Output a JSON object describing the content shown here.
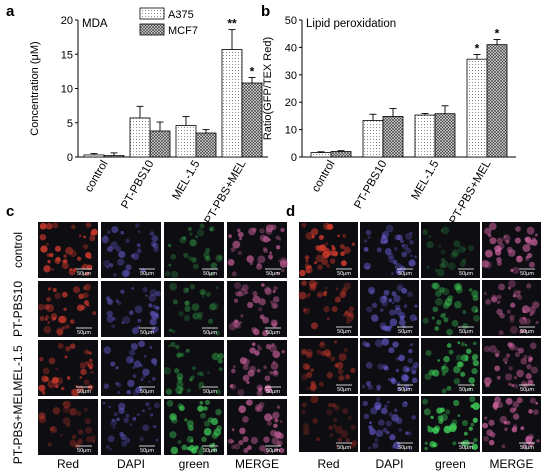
{
  "colors": {
    "bar_open": "#f7f7f7",
    "bar_hatched": "#cfcfcf",
    "micro_bg": "#0d0d12",
    "red_stain": "#d33a2c",
    "dapi_stain": "#6a5fd6",
    "green_stain": "#3fcf58",
    "merge_stain": "#c8609a"
  },
  "panel_a": {
    "panel_label": "a",
    "title": "MDA",
    "chart_data": {
      "type": "bar",
      "categories": [
        "control",
        "PT-PBS10",
        "MEL-1.5",
        "PT-PBS+MEL"
      ],
      "series": [
        {
          "name": "A375",
          "values": [
            0.3,
            5.7,
            4.6,
            15.7
          ],
          "errors": [
            0.2,
            1.7,
            1.3,
            2.9
          ]
        },
        {
          "name": "MCF7",
          "values": [
            0.2,
            3.8,
            3.5,
            10.8
          ],
          "errors": [
            0.4,
            1.3,
            0.5,
            0.8
          ]
        }
      ],
      "ylabel": "Concentration (μM)",
      "ylim": [
        0,
        20
      ],
      "yticks": [
        0,
        5,
        10,
        15,
        20
      ],
      "significance": [
        {
          "category": "PT-PBS+MEL",
          "series": "A375",
          "mark": "**"
        },
        {
          "category": "PT-PBS+MEL",
          "series": "MCF7",
          "mark": "*"
        }
      ]
    }
  },
  "panel_b": {
    "panel_label": "b",
    "title": "Lipid peroxidation",
    "chart_data": {
      "type": "bar",
      "categories": [
        "control",
        "PT-PBS10",
        "MEL-1.5",
        "PT-PBS+MEL"
      ],
      "series": [
        {
          "name": "A375",
          "values": [
            1.6,
            13.3,
            15.3,
            35.7
          ],
          "errors": [
            0.3,
            2.3,
            0.6,
            1.7
          ]
        },
        {
          "name": "MCF7",
          "values": [
            2.0,
            14.8,
            15.8,
            41.0
          ],
          "errors": [
            0.3,
            2.9,
            2.9,
            1.9
          ]
        }
      ],
      "ylabel": "Ratio(GFP/TEX Red)",
      "ylim": [
        0,
        50
      ],
      "yticks": [
        0,
        10,
        20,
        30,
        40,
        50
      ],
      "significance": [
        {
          "category": "PT-PBS+MEL",
          "series": "A375",
          "mark": "*"
        },
        {
          "category": "PT-PBS+MEL",
          "series": "MCF7",
          "mark": "*"
        }
      ]
    }
  },
  "panel_c": {
    "panel_label": "c",
    "rows": [
      "control",
      "PT-PBS10",
      "MEL-1.5",
      "PT-PBS+MEL"
    ],
    "columns": [
      "Red",
      "DAPI",
      "green",
      "MERGE"
    ],
    "scale_bar": "50μm",
    "intensity": [
      [
        0.9,
        0.55,
        0.35,
        0.8
      ],
      [
        0.75,
        0.6,
        0.3,
        0.7
      ],
      [
        0.8,
        0.55,
        0.45,
        0.75
      ],
      [
        0.35,
        0.5,
        0.85,
        0.8
      ]
    ]
  },
  "panel_d": {
    "panel_label": "d",
    "columns": [
      "Red",
      "DAPI",
      "green",
      "MERGE"
    ],
    "scale_bar": "50μm",
    "intensity": [
      [
        0.95,
        0.7,
        0.15,
        0.85
      ],
      [
        0.55,
        0.65,
        0.55,
        0.7
      ],
      [
        0.5,
        0.7,
        0.7,
        0.75
      ],
      [
        0.3,
        0.65,
        0.9,
        0.85
      ]
    ]
  }
}
